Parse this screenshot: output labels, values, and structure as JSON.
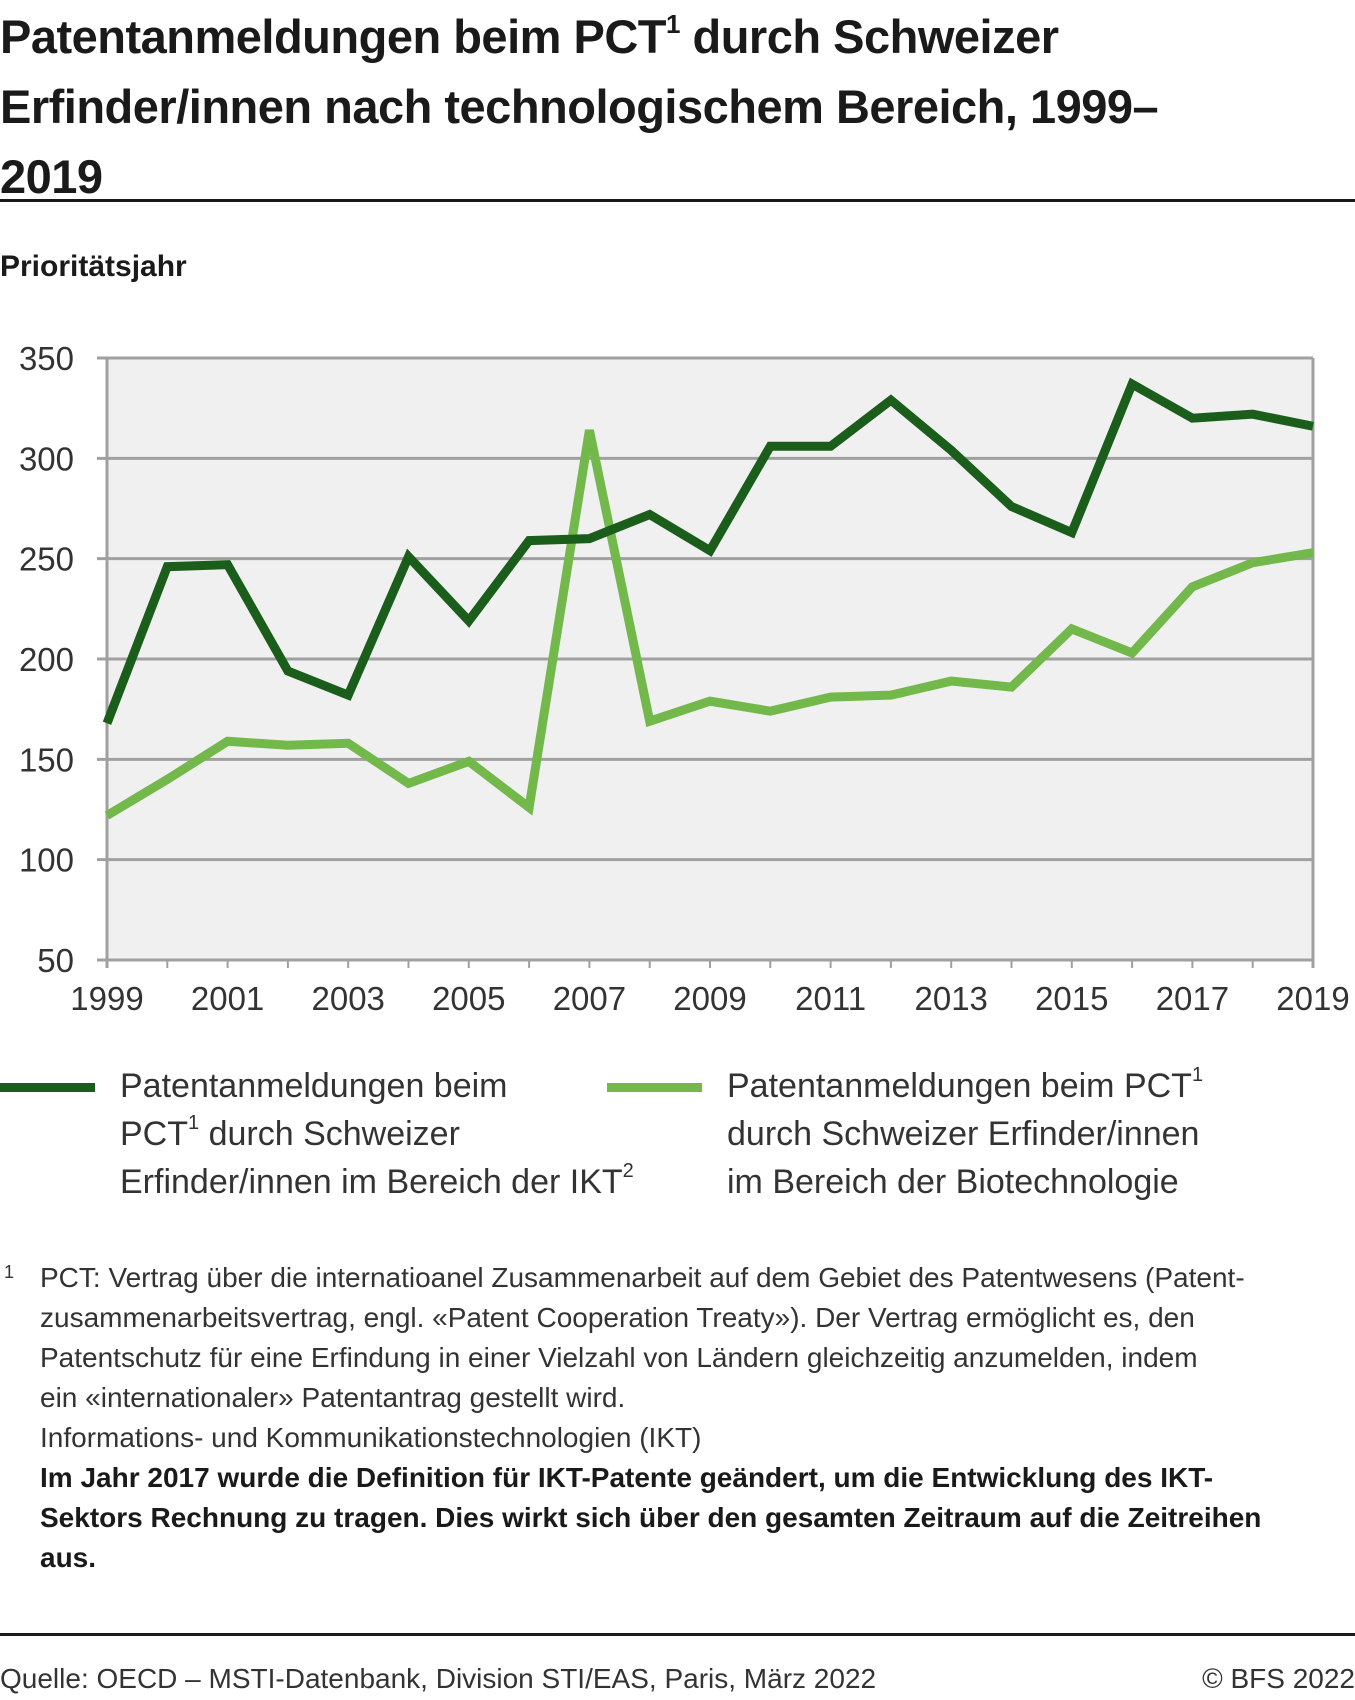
{
  "header": {
    "title_part1": "Patentanmeldungen beim PCT",
    "title_sup": "1",
    "title_part2": " durch Schweizer Erfinder/innen nach technologischem Bereich, 1999–2019"
  },
  "axis_caption": "Prioritätsjahr",
  "chart_data": {
    "type": "line",
    "title": "Patentanmeldungen beim PCT durch Schweizer Erfinder/innen nach technologischem Bereich, 1999–2019",
    "xlabel": "Prioritätsjahr",
    "ylabel": "",
    "x": [
      1999,
      2000,
      2001,
      2002,
      2003,
      2004,
      2005,
      2006,
      2007,
      2008,
      2009,
      2010,
      2011,
      2012,
      2013,
      2014,
      2015,
      2016,
      2017,
      2018,
      2019
    ],
    "x_tick_labels": [
      "1999",
      "2001",
      "2003",
      "2005",
      "2007",
      "2009",
      "2011",
      "2013",
      "2015",
      "2017",
      "2019"
    ],
    "y_tick_labels": [
      "50",
      "100",
      "150",
      "200",
      "250",
      "300",
      "350"
    ],
    "ylim": [
      50,
      350
    ],
    "grid": true,
    "legend_position": "bottom",
    "series": [
      {
        "name": "Patentanmeldungen beim PCT1 durch Schweizer Erfinder/innen im Bereich der IKT2",
        "color": "#1b5e1b",
        "values": [
          168,
          246,
          247,
          194,
          182,
          251,
          219,
          259,
          260,
          272,
          254,
          306,
          306,
          329,
          304,
          276,
          263,
          337,
          320,
          322,
          316
        ]
      },
      {
        "name": "Patentanmeldungen beim PCT1 durch Schweizer Erfinder/innen im Bereich der Biotechnologie",
        "color": "#72b84a",
        "values": [
          122,
          140,
          159,
          157,
          158,
          138,
          149,
          126,
          314,
          169,
          179,
          174,
          181,
          182,
          189,
          186,
          215,
          203,
          236,
          248,
          253
        ]
      }
    ]
  },
  "legend": {
    "ikt": {
      "line1": "Patentanmeldungen beim",
      "line2a": "PCT",
      "line2sup": "1",
      "line2b": " durch Schweizer",
      "line3a": "Erfinder/innen im Bereich der IKT",
      "line3sup": "2"
    },
    "bio": {
      "line1a": "Patentanmeldungen beim PCT",
      "line1sup": "1",
      "line2": "durch Schweizer Erfinder/innen",
      "line3": "im Bereich der Biotechnologie"
    }
  },
  "footnotes": {
    "marker1": "1",
    "note1_l1": "PCT: Vertrag über die internatioanel Zusammenarbeit auf dem Gebiet des Patentwesens (Patent-",
    "note1_l2": "zusammenarbeitsvertrag, engl. «Patent Cooperation Treaty»). Der Vertrag ermöglicht es, den",
    "note1_l3": "Patentschutz für eine Erfindung in einer Vielzahl von Ländern gleichzeitig anzumelden, indem",
    "note1_l4": "ein «internationaler» Patentantrag gestellt wird.",
    "note2": "Informations- und Kommunikationstechnologien (IKT)",
    "note_bold_l1": "Im Jahr 2017 wurde die Definition für IKT-Patente geändert, um die Entwicklung des IKT-",
    "note_bold_l2": "Sektors Rechnung zu tragen. Dies wirkt sich über den gesamten Zeitraum auf die Zeitreihen",
    "note_bold_l3": "aus."
  },
  "footer": {
    "source": "Quelle: OECD – MSTI-Datenbank, Division STI/EAS, Paris, März 2022",
    "copyright": "© BFS 2022"
  }
}
